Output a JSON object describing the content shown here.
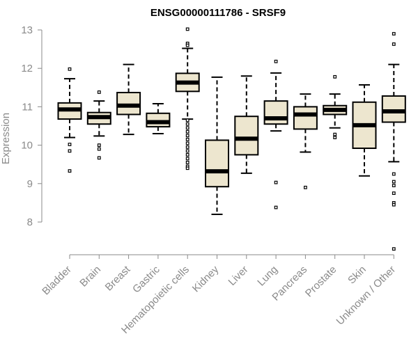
{
  "chart_data": {
    "type": "boxplot",
    "title": "ENSG00000111786 - SRSF9",
    "xlabel": "",
    "ylabel": "Expression",
    "ylim": [
      7.1,
      13.1
    ],
    "yticks": [
      8,
      9,
      10,
      11,
      12,
      13
    ],
    "box_fill": "#EDE6CF",
    "categories": [
      "Bladder",
      "Brain",
      "Breast",
      "Gastric",
      "Hematopoietic cells",
      "Kidney",
      "Liver",
      "Lung",
      "Pancreas",
      "Prostate",
      "Skin",
      "Unknown / Other"
    ],
    "boxes": [
      {
        "whisker_low": 10.2,
        "q1": 10.68,
        "median": 10.93,
        "q3": 11.1,
        "whisker_high": 11.73,
        "outliers": [
          11.98,
          10.02,
          9.85,
          9.33
        ]
      },
      {
        "whisker_low": 10.24,
        "q1": 10.55,
        "median": 10.73,
        "q3": 10.85,
        "whisker_high": 11.15,
        "outliers": [
          11.38,
          10.0,
          9.9,
          9.67
        ]
      },
      {
        "whisker_low": 10.28,
        "q1": 10.8,
        "median": 11.03,
        "q3": 11.37,
        "whisker_high": 12.1,
        "outliers": []
      },
      {
        "whisker_low": 10.3,
        "q1": 10.48,
        "median": 10.6,
        "q3": 10.83,
        "whisker_high": 11.08,
        "outliers": []
      },
      {
        "whisker_low": 10.68,
        "q1": 11.4,
        "median": 11.63,
        "q3": 11.87,
        "whisker_high": 12.52,
        "outliers": [
          13.02,
          12.65,
          12.6,
          10.65,
          10.55,
          10.45,
          10.35,
          10.25,
          10.15,
          10.05,
          9.95,
          9.85,
          9.75,
          9.65,
          9.55,
          9.45,
          9.4
        ]
      },
      {
        "whisker_low": 8.2,
        "q1": 8.92,
        "median": 9.32,
        "q3": 10.13,
        "whisker_high": 11.77,
        "outliers": []
      },
      {
        "whisker_low": 9.27,
        "q1": 9.75,
        "median": 10.17,
        "q3": 10.75,
        "whisker_high": 11.8,
        "outliers": []
      },
      {
        "whisker_low": 10.37,
        "q1": 10.55,
        "median": 10.7,
        "q3": 11.15,
        "whisker_high": 11.88,
        "outliers": [
          12.18,
          9.03,
          8.38
        ]
      },
      {
        "whisker_low": 9.82,
        "q1": 10.42,
        "median": 10.8,
        "q3": 11.0,
        "whisker_high": 11.33,
        "outliers": [
          8.9
        ]
      },
      {
        "whisker_low": 10.45,
        "q1": 10.8,
        "median": 10.92,
        "q3": 11.03,
        "whisker_high": 11.33,
        "outliers": [
          11.78,
          10.28,
          10.2
        ]
      },
      {
        "whisker_low": 9.2,
        "q1": 9.92,
        "median": 10.52,
        "q3": 11.12,
        "whisker_high": 11.57,
        "outliers": []
      },
      {
        "whisker_low": 9.57,
        "q1": 10.6,
        "median": 10.88,
        "q3": 11.28,
        "whisker_high": 12.1,
        "outliers": [
          12.9,
          12.63,
          9.25,
          9.05,
          8.95,
          8.75,
          8.5,
          8.45,
          7.3
        ]
      }
    ]
  }
}
